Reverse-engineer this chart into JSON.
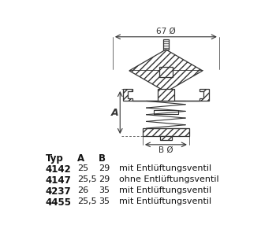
{
  "bg_color": "#ffffff",
  "table_header": [
    "Typ",
    "A",
    "B",
    ""
  ],
  "table_rows": [
    [
      "4142",
      "25",
      "29",
      "mit Entlüftungsventil"
    ],
    [
      "4147",
      "25,5",
      "29",
      "ohne Entlüftungsventil"
    ],
    [
      "4237",
      "26",
      "35",
      "mit Entlüftungsventil"
    ],
    [
      "4455",
      "25,5",
      "35",
      "mit Entlüftungsventil"
    ]
  ],
  "dim_top": "67 Ø",
  "dim_bottom": "B Ø",
  "dim_left": "A",
  "lc": "#333333"
}
